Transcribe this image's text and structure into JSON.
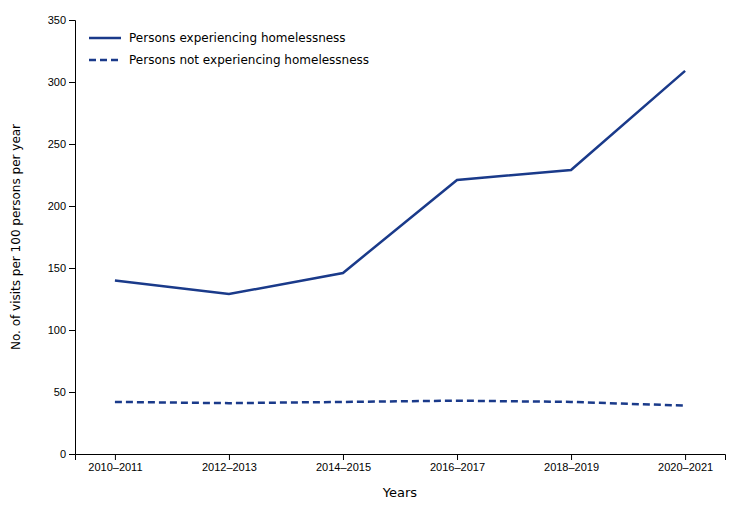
{
  "chart_data": {
    "type": "line",
    "xlabel": "Years",
    "ylabel": "No. of visits per 100 persons per year",
    "categories": [
      "2010–2011",
      "2012–2013",
      "2014–2015",
      "2016–2017",
      "2018–2019",
      "2020–2021"
    ],
    "series": [
      {
        "name": "Persons experiencing homelessness",
        "color": "#1a3a8a",
        "line_style": "solid",
        "values": [
          140,
          129,
          146,
          221,
          229,
          309
        ]
      },
      {
        "name": "Persons not experiencing homelessness",
        "color": "#1a3a8a",
        "line_style": "dashed",
        "values": [
          42,
          41,
          42,
          43,
          42,
          39
        ]
      }
    ],
    "ylim": [
      0,
      350
    ],
    "yticks": [
      0,
      50,
      100,
      150,
      200,
      250,
      300,
      350
    ],
    "grid": false,
    "legend": "upper left"
  }
}
